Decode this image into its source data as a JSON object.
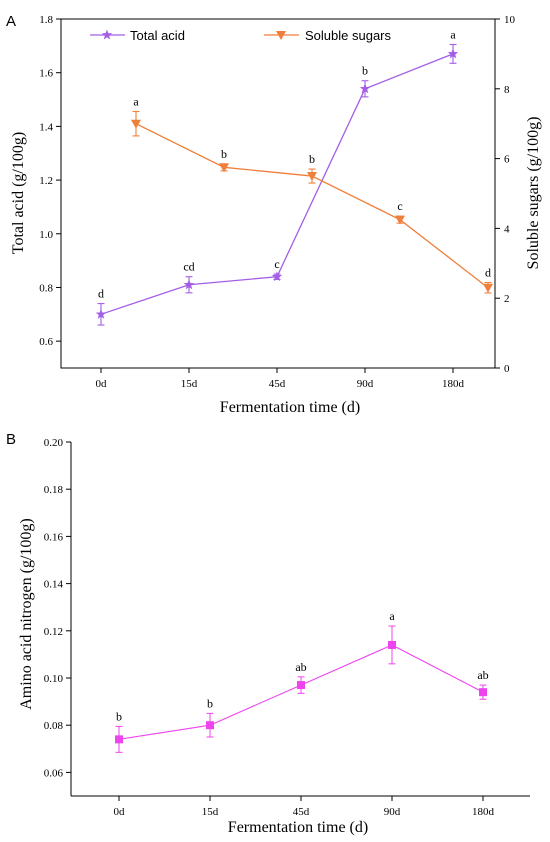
{
  "chart_data": [
    {
      "type": "line",
      "panel_label": "A",
      "categories": [
        "0d",
        "15d",
        "45d",
        "90d",
        "180d"
      ],
      "xlabel": "Fermentation time (d)",
      "ylabel": "Total acid (g/100g)",
      "y2label": "Soluble sugars (g/100g)",
      "ylim": [
        0.5,
        1.8
      ],
      "yticks": [
        "0.6",
        "0.8",
        "1.0",
        "1.2",
        "1.4",
        "1.6",
        "1.8"
      ],
      "y2lim": [
        0,
        10
      ],
      "y2ticks": [
        "0",
        "2",
        "4",
        "6",
        "8",
        "10"
      ],
      "legend_position": "top",
      "series": [
        {
          "name": "Total acid",
          "axis": "left",
          "color": "#a45ee5",
          "marker": "star",
          "values": [
            0.7,
            0.81,
            0.84,
            1.54,
            1.67
          ],
          "errors": [
            0.04,
            0.03,
            0.01,
            0.03,
            0.035
          ],
          "labels": [
            "d",
            "cd",
            "c",
            "b",
            "a"
          ]
        },
        {
          "name": "Soluble sugars",
          "axis": "right",
          "color": "#f07f3c",
          "marker": "triangle-down",
          "values": [
            7.0,
            5.75,
            5.5,
            4.25,
            2.3
          ],
          "errors": [
            0.35,
            0.1,
            0.2,
            0.1,
            0.15
          ],
          "labels": [
            "a",
            "b",
            "b",
            "c",
            "d"
          ]
        }
      ]
    },
    {
      "type": "line",
      "panel_label": "B",
      "categories": [
        "0d",
        "15d",
        "45d",
        "90d",
        "180d"
      ],
      "xlabel": "Fermentation time (d)",
      "ylabel": "Amino acid nitrogen (g/100g)",
      "ylim": [
        0.05,
        0.2
      ],
      "yticks": [
        "0.06",
        "0.08",
        "0.10",
        "0.12",
        "0.14",
        "0.16",
        "0.18",
        "0.20"
      ],
      "series": [
        {
          "name": "",
          "color": "#ee44ee",
          "marker": "square",
          "values": [
            0.074,
            0.08,
            0.097,
            0.114,
            0.094
          ],
          "errors": [
            0.0055,
            0.005,
            0.0035,
            0.008,
            0.003
          ],
          "labels": [
            "b",
            "b",
            "ab",
            "a",
            "ab"
          ]
        }
      ]
    }
  ]
}
